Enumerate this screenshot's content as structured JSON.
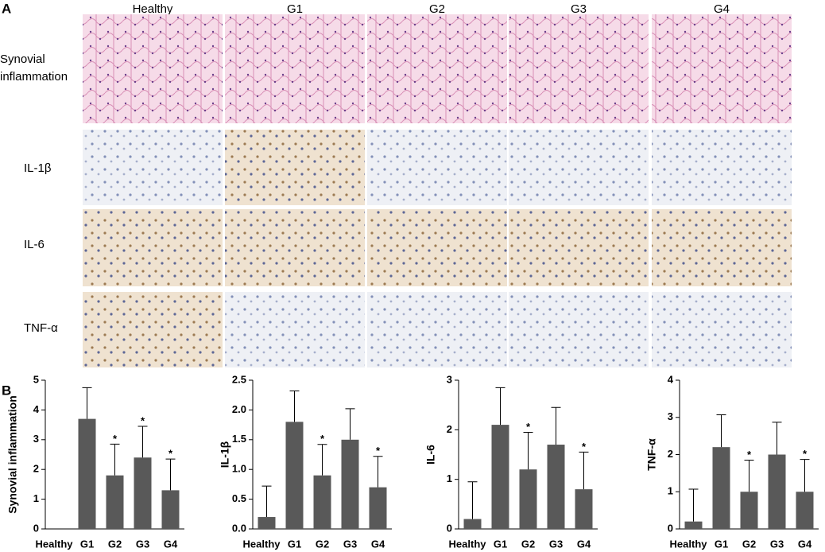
{
  "panel_a": {
    "label": "A",
    "columns": [
      "Healthy",
      "G1",
      "G2",
      "G3",
      "G4"
    ],
    "rows": [
      [
        "Synovial",
        "inflammation"
      ],
      [
        "IL-1β"
      ],
      [
        "IL-6"
      ],
      [
        "TNF-α"
      ]
    ]
  },
  "panel_b": {
    "label": "B"
  },
  "chart_data": [
    {
      "type": "bar",
      "y_label": "Synovial inflammation",
      "color": "#595959",
      "categories": [
        "Healthy",
        "G1",
        "G2",
        "G3",
        "G4"
      ],
      "values": [
        0,
        3.7,
        1.8,
        2.4,
        1.3
      ],
      "errors": [
        0,
        1.05,
        1.05,
        1.05,
        1.05
      ],
      "annotations": [
        null,
        null,
        "*",
        "*",
        "*"
      ],
      "ylim": [
        0,
        5
      ],
      "yticks": [
        0,
        1,
        2,
        3,
        4,
        5
      ]
    },
    {
      "type": "bar",
      "y_label": "IL-1β",
      "color": "#595959",
      "categories": [
        "Healthy",
        "G1",
        "G2",
        "G3",
        "G4"
      ],
      "values": [
        0.2,
        1.8,
        0.9,
        1.5,
        0.7
      ],
      "errors": [
        0.52,
        0.52,
        0.52,
        0.52,
        0.52
      ],
      "annotations": [
        null,
        null,
        "*",
        null,
        "*"
      ],
      "ylim": [
        0,
        2.5
      ],
      "yticks": [
        {
          "value": 0,
          "label": "0.0"
        },
        {
          "value": 0.5,
          "label": "0.5"
        },
        {
          "value": 1,
          "label": "1.0"
        },
        {
          "value": 1.5,
          "label": "1.5"
        },
        {
          "value": 2,
          "label": "2.0"
        },
        {
          "value": 2.5,
          "label": "2.5"
        }
      ]
    },
    {
      "type": "bar",
      "y_label": "IL-6",
      "color": "#595959",
      "categories": [
        "Healthy",
        "G1",
        "G2",
        "G3",
        "G4"
      ],
      "values": [
        0.2,
        2.1,
        1.2,
        1.7,
        0.8
      ],
      "errors": [
        0.75,
        0.75,
        0.75,
        0.75,
        0.75
      ],
      "annotations": [
        null,
        null,
        "*",
        null,
        "*"
      ],
      "ylim": [
        0,
        3
      ],
      "yticks": [
        0,
        1,
        2,
        3
      ]
    },
    {
      "type": "bar",
      "y_label": "TNF-α",
      "color": "#595959",
      "categories": [
        "Healthy",
        "G1",
        "G2",
        "G3",
        "G4"
      ],
      "values": [
        0.2,
        2.2,
        1.0,
        2.0,
        1.0
      ],
      "errors": [
        0.87,
        0.87,
        0.85,
        0.87,
        0.87
      ],
      "annotations": [
        null,
        null,
        "*",
        null,
        "*"
      ],
      "ylim": [
        0,
        4
      ],
      "yticks": [
        0,
        1,
        2,
        3,
        4
      ]
    }
  ]
}
